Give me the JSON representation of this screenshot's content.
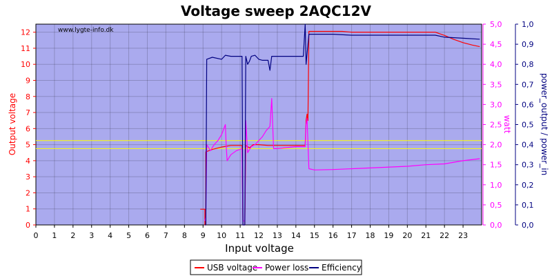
{
  "chart_data": {
    "type": "line",
    "title": "Voltage sweep 2AQC12V",
    "watermark": "www.lygte-info.dk",
    "xlabel": "Input voltage",
    "xlim": [
      0,
      24
    ],
    "x_ticks": [
      "0",
      "1",
      "2",
      "3",
      "4",
      "5",
      "6",
      "7",
      "8",
      "9",
      "10",
      "11",
      "12",
      "13",
      "14",
      "15",
      "16",
      "17",
      "18",
      "19",
      "20",
      "21",
      "22",
      "23"
    ],
    "y_left": {
      "label": "Output voltage",
      "lim": [
        0,
        12.5
      ],
      "ticks": [
        "0",
        "1",
        "2",
        "3",
        "4",
        "5",
        "6",
        "7",
        "8",
        "9",
        "10",
        "11",
        "12"
      ],
      "color": "#ff0000"
    },
    "y_right1": {
      "label": "watt",
      "lim": [
        0,
        5.0
      ],
      "ticks": [
        "0,0",
        "0,5",
        "1,0",
        "1,5",
        "2,0",
        "2,5",
        "3,0",
        "3,5",
        "4,0",
        "4,5",
        "5,0"
      ],
      "color": "#ff00ff"
    },
    "y_right2": {
      "label": "power_output / power_in",
      "lim": [
        0,
        1.0
      ],
      "ticks": [
        "0,0",
        "0,1",
        "0,2",
        "0,3",
        "0,4",
        "0,5",
        "0,6",
        "0,7",
        "0,8",
        "0,9",
        "1,0"
      ],
      "color": "#000080"
    },
    "reference_lines": [
      {
        "axis": "y_left",
        "value": 5.25,
        "color": "#ffff00"
      },
      {
        "axis": "y_left",
        "value": 4.75,
        "color": "#ffff00"
      }
    ],
    "series": [
      {
        "name": "USB voltage",
        "color": "#ff0000",
        "axis": "y_left",
        "points": [
          [
            8.85,
            0.98
          ],
          [
            9.1,
            0.98
          ],
          [
            9.1,
            0
          ],
          [
            9.15,
            0
          ],
          [
            9.15,
            4.55
          ],
          [
            9.5,
            4.7
          ],
          [
            10.0,
            4.85
          ],
          [
            10.5,
            4.95
          ],
          [
            11.1,
            4.95
          ],
          [
            11.15,
            0
          ],
          [
            11.25,
            0
          ],
          [
            11.3,
            4.95
          ],
          [
            11.5,
            4.8
          ],
          [
            11.7,
            5.0
          ],
          [
            12.0,
            5.0
          ],
          [
            12.5,
            4.95
          ],
          [
            13.0,
            4.95
          ],
          [
            14.0,
            4.95
          ],
          [
            14.5,
            4.95
          ],
          [
            14.55,
            6.5
          ],
          [
            14.6,
            6.9
          ],
          [
            14.65,
            6.5
          ],
          [
            14.7,
            12.05
          ],
          [
            15.5,
            12.05
          ],
          [
            16.5,
            12.05
          ],
          [
            17.0,
            12.0
          ],
          [
            18.0,
            12.0
          ],
          [
            20.0,
            12.0
          ],
          [
            21.5,
            12.0
          ],
          [
            22.0,
            11.8
          ],
          [
            22.5,
            11.55
          ],
          [
            23.0,
            11.35
          ],
          [
            23.5,
            11.2
          ],
          [
            23.9,
            11.1
          ]
        ]
      },
      {
        "name": "Power loss",
        "color": "#ff00ff",
        "axis": "y_right1",
        "points": [
          [
            9.1,
            0.1
          ],
          [
            9.15,
            0.2
          ],
          [
            9.2,
            2.0
          ],
          [
            9.4,
            1.85
          ],
          [
            9.6,
            2.0
          ],
          [
            9.8,
            2.1
          ],
          [
            10.0,
            2.25
          ],
          [
            10.2,
            2.5
          ],
          [
            10.25,
            1.95
          ],
          [
            10.3,
            1.6
          ],
          [
            10.5,
            1.75
          ],
          [
            10.8,
            1.85
          ],
          [
            11.1,
            1.9
          ],
          [
            11.15,
            0.1
          ],
          [
            11.25,
            0.1
          ],
          [
            11.3,
            2.6
          ],
          [
            11.4,
            1.8
          ],
          [
            11.6,
            1.95
          ],
          [
            11.8,
            2.0
          ],
          [
            12.0,
            2.1
          ],
          [
            12.2,
            2.2
          ],
          [
            12.4,
            2.35
          ],
          [
            12.6,
            2.45
          ],
          [
            12.7,
            3.15
          ],
          [
            12.8,
            1.9
          ],
          [
            13.0,
            1.9
          ],
          [
            14.0,
            1.95
          ],
          [
            14.5,
            1.95
          ],
          [
            14.55,
            2.5
          ],
          [
            14.6,
            2.65
          ],
          [
            14.7,
            1.4
          ],
          [
            15.0,
            1.37
          ],
          [
            16.0,
            1.38
          ],
          [
            18.0,
            1.42
          ],
          [
            20.0,
            1.46
          ],
          [
            21.0,
            1.5
          ],
          [
            22.0,
            1.52
          ],
          [
            23.0,
            1.6
          ],
          [
            23.9,
            1.65
          ]
        ]
      },
      {
        "name": "Efficiency",
        "color": "#000080",
        "axis": "y_right2",
        "points": [
          [
            9.1,
            0
          ],
          [
            9.15,
            0
          ],
          [
            9.2,
            0.825
          ],
          [
            9.5,
            0.835
          ],
          [
            10.0,
            0.825
          ],
          [
            10.2,
            0.845
          ],
          [
            10.5,
            0.84
          ],
          [
            11.0,
            0.84
          ],
          [
            11.1,
            0.84
          ],
          [
            11.15,
            0
          ],
          [
            11.25,
            0
          ],
          [
            11.3,
            0.84
          ],
          [
            11.4,
            0.8
          ],
          [
            11.5,
            0.815
          ],
          [
            11.6,
            0.84
          ],
          [
            11.8,
            0.845
          ],
          [
            12.0,
            0.825
          ],
          [
            12.2,
            0.82
          ],
          [
            12.5,
            0.82
          ],
          [
            12.6,
            0.77
          ],
          [
            12.7,
            0.84
          ],
          [
            13.0,
            0.84
          ],
          [
            14.0,
            0.84
          ],
          [
            14.4,
            0.84
          ],
          [
            14.5,
            1.0
          ],
          [
            14.55,
            0.8
          ],
          [
            14.7,
            0.95
          ],
          [
            15.0,
            0.95
          ],
          [
            16.0,
            0.95
          ],
          [
            17.0,
            0.945
          ],
          [
            18.0,
            0.945
          ],
          [
            20.0,
            0.945
          ],
          [
            21.5,
            0.945
          ],
          [
            22.0,
            0.935
          ],
          [
            23.0,
            0.93
          ],
          [
            23.9,
            0.925
          ]
        ]
      }
    ],
    "legend_placement": "bottom-center",
    "grid": true,
    "background": "#aaaaee"
  }
}
